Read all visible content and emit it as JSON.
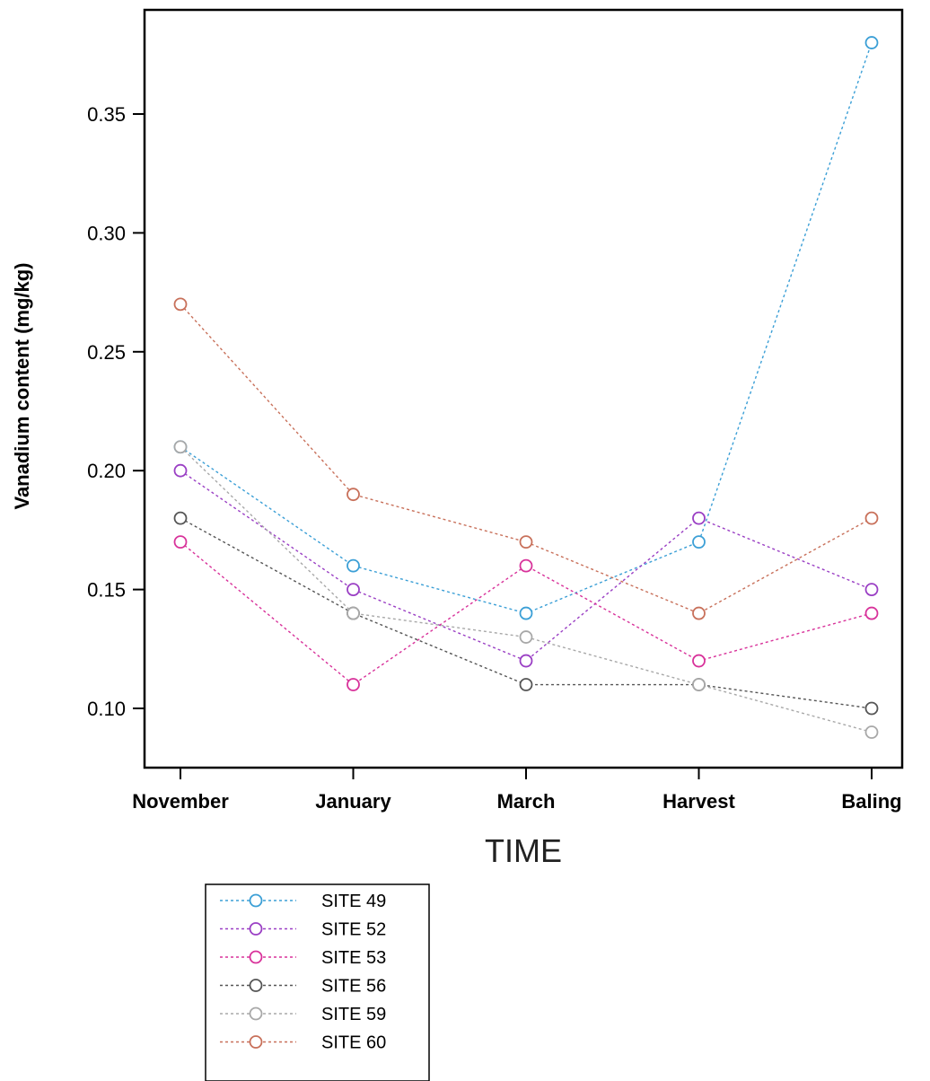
{
  "chart_data": {
    "type": "line",
    "title": "",
    "xlabel": "TIME",
    "ylabel": "Vanadium content (mg/kg)",
    "categories": [
      "November",
      "January",
      "March",
      "Harvest",
      "Baling"
    ],
    "ylim": [
      0.075,
      0.39
    ],
    "yticks": [
      0.1,
      0.15,
      0.2,
      0.25,
      0.3,
      0.35
    ],
    "ytick_labels": [
      "0.10",
      "0.15",
      "0.20",
      "0.25",
      "0.30",
      "0.35"
    ],
    "grid": false,
    "legend_position": "bottom-left",
    "series": [
      {
        "name": "SITE 49",
        "color": "#3b9fd6",
        "values": [
          0.21,
          0.16,
          0.14,
          0.17,
          0.38
        ]
      },
      {
        "name": "SITE 52",
        "color": "#9a3fc4",
        "values": [
          0.2,
          0.15,
          0.12,
          0.18,
          0.15
        ]
      },
      {
        "name": "SITE 53",
        "color": "#d8329a",
        "values": [
          0.17,
          0.11,
          0.16,
          0.12,
          0.14
        ]
      },
      {
        "name": "SITE 56",
        "color": "#555555",
        "values": [
          0.18,
          0.14,
          0.11,
          0.11,
          0.1
        ]
      },
      {
        "name": "SITE 59",
        "color": "#a8a8a8",
        "values": [
          0.21,
          0.14,
          0.13,
          0.11,
          0.09
        ]
      },
      {
        "name": "SITE 60",
        "color": "#c8705a",
        "values": [
          0.27,
          0.19,
          0.17,
          0.14,
          0.18
        ]
      }
    ]
  }
}
